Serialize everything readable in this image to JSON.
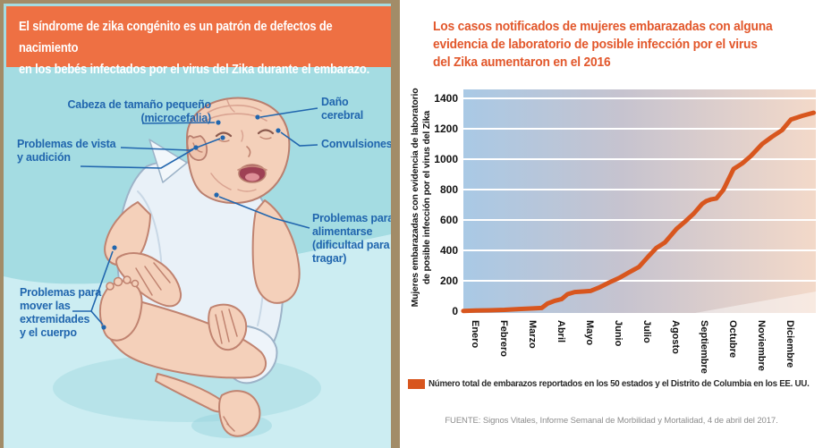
{
  "left_panel": {
    "header": "El síndrome de zika congénito es un patrón de defectos de nacimiento\nen los bebés infectados por el virus del Zika durante el embarazo.",
    "labels": {
      "head": "Cabeza de tamaño pequeño\n(microcefalia)",
      "vision": "Problemas de vista\ny audición",
      "brain": "Daño\ncerebral",
      "seizures": "Convulsiones",
      "feeding": "Problemas para\nalimentarse\n(dificultad para\ntragar)",
      "movement": "Problemas para\nmover las\nextremidades\ny el cuerpo"
    }
  },
  "right_panel": {
    "title": "Los casos notificados de mujeres embarazadas con alguna\nevidencia de laboratorio de posible infección por el virus\ndel Zika aumentaron en el 2016",
    "legend": "Número total de embarazos reportados en los 50 estados y el Distrito de Columbia en los EE. UU.",
    "source": "FUENTE: Signos Vitales, Informe Semanal de Morbilidad y Mortalidad, 4 de abril del 2017."
  },
  "chart_data": {
    "type": "line",
    "title": "Los casos notificados de mujeres embarazadas con alguna evidencia de laboratorio de posible infección por el virus del Zika aumentaron en el 2016",
    "ylabel": "Mujeres embarazadas con evidencia de laboratorio\nde posible infección por el virus del Zika",
    "x_categories": [
      "Enero",
      "Febrero",
      "Marzo",
      "Abril",
      "Mayo",
      "Junio",
      "Julio",
      "Agosto",
      "Septiembre",
      "Octubre",
      "Noviembre",
      "Diciembre"
    ],
    "y_ticks": [
      0,
      200,
      400,
      600,
      800,
      1000,
      1200,
      1400
    ],
    "ylim": [
      0,
      1450
    ],
    "grid": "horizontal-white-gridlines",
    "legend_position": "bottom",
    "series": [
      {
        "name": "Número total de embarazos reportados en los 50 estados y el Distrito de Columbia en los EE. UU.",
        "color": "#d8561e",
        "points": [
          [
            -0.44,
            2
          ],
          [
            0,
            4
          ],
          [
            0.5,
            6
          ],
          [
            1,
            9
          ],
          [
            1.5,
            14
          ],
          [
            2,
            18
          ],
          [
            2.3,
            21
          ],
          [
            2.5,
            50
          ],
          [
            2.75,
            68
          ],
          [
            3,
            80
          ],
          [
            3.2,
            112
          ],
          [
            3.45,
            126
          ],
          [
            3.8,
            130
          ],
          [
            4,
            133
          ],
          [
            4.3,
            155
          ],
          [
            4.65,
            188
          ],
          [
            5,
            218
          ],
          [
            5.35,
            255
          ],
          [
            5.7,
            292
          ],
          [
            6,
            355
          ],
          [
            6.3,
            415
          ],
          [
            6.6,
            452
          ],
          [
            7,
            540
          ],
          [
            7.3,
            588
          ],
          [
            7.6,
            640
          ],
          [
            7.9,
            705
          ],
          [
            8.05,
            725
          ],
          [
            8.2,
            735
          ],
          [
            8.4,
            742
          ],
          [
            8.65,
            800
          ],
          [
            9,
            935
          ],
          [
            9.3,
            972
          ],
          [
            9.6,
            1020
          ],
          [
            10,
            1100
          ],
          [
            10.35,
            1148
          ],
          [
            10.7,
            1192
          ],
          [
            11,
            1260
          ],
          [
            11.4,
            1285
          ],
          [
            11.8,
            1305
          ]
        ]
      }
    ],
    "month_values_read_at_ticks": {
      "Enero": 4,
      "Febrero": 9,
      "Marzo": 18,
      "Abril": 80,
      "Mayo": 133,
      "Junio": 218,
      "Julio": 355,
      "Agosto": 540,
      "Septiembre": 725,
      "Octubre": 935,
      "Noviembre": 1100,
      "Diciembre": 1260
    }
  },
  "colors": {
    "banner_orange": "#ee7043",
    "title_orange": "#e2572b",
    "line_orange": "#d8561e",
    "callout_blue": "#2166ae",
    "teal_top": "#a4dce2",
    "teal_bottom": "#ccedf2",
    "frame_tan": "#a28c68",
    "plot_gradient_left": "#a9c9e5",
    "plot_gradient_right": "#f3d9c9"
  }
}
